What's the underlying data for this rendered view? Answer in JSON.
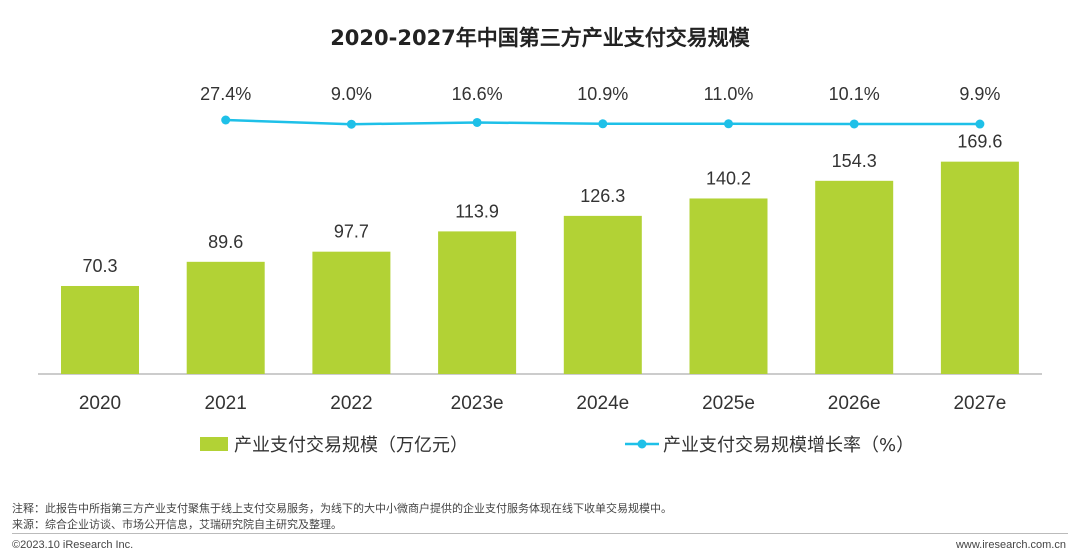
{
  "chart_data": {
    "type": "bar+line",
    "title": "2020-2027年中国第三方产业支付交易规模",
    "categories": [
      "2020",
      "2021",
      "2022",
      "2023e",
      "2024e",
      "2025e",
      "2026e",
      "2027e"
    ],
    "series": [
      {
        "name": "产业支付交易规模（万亿元）",
        "type": "bar",
        "color": "#b2d235",
        "values": [
          70.3,
          89.6,
          97.7,
          113.9,
          126.3,
          140.2,
          154.3,
          169.6
        ],
        "labels": [
          "70.3",
          "89.6",
          "97.7",
          "113.9",
          "126.3",
          "140.2",
          "154.3",
          "169.6"
        ]
      },
      {
        "name": "产业支付交易规模增长率（%）",
        "type": "line",
        "color": "#1ec0e8",
        "x": [
          "2021",
          "2022",
          "2023e",
          "2024e",
          "2025e",
          "2026e",
          "2027e"
        ],
        "values": [
          27.4,
          9.0,
          16.6,
          10.9,
          11.0,
          10.1,
          9.9
        ],
        "labels": [
          "27.4%",
          "9.0%",
          "16.6%",
          "10.9%",
          "11.0%",
          "10.1%",
          "9.9%"
        ]
      }
    ],
    "legend": "bottom",
    "grid": false
  },
  "footer": {
    "note": "注释：此报告中所指第三方产业支付聚焦于线上支付交易服务，为线下的大中小微商户提供的企业支付服务体现在线下收单交易规模中。",
    "source": "来源：综合企业访谈、市场公开信息，艾瑞研究院自主研究及整理。",
    "copyright": "©2023.10 iResearch Inc.",
    "website": "www.iresearch.com.cn"
  }
}
